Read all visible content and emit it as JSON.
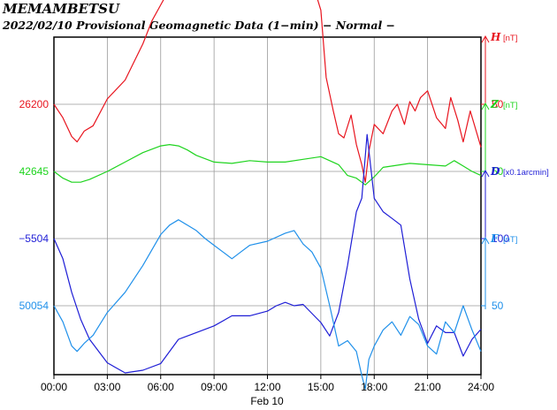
{
  "chart_data": {
    "type": "line",
    "title": "MEMAMBETSU",
    "subtitle": "2022/02/10  Provisional Geomagnetic Data (1−min)  − Normal −",
    "x_ticks": [
      "00:00",
      "03:00",
      "06:00",
      "09:00",
      "12:00",
      "15:00",
      "18:00",
      "21:00",
      "24:00"
    ],
    "x_range_hours": [
      0,
      24
    ],
    "date_label": "Feb 10",
    "grid": true,
    "series": [
      {
        "key": "H",
        "name": "H",
        "unit": "[nT]",
        "color": "#e8141e",
        "left_label": "26200",
        "right_tick": "50",
        "baseline": 26200,
        "scale_tick_value": 50,
        "x": [
          0,
          0.5,
          1,
          1.3,
          1.7,
          2.2,
          3,
          4,
          5,
          5.5,
          6,
          6.5,
          7,
          7.5,
          8,
          8.5,
          9,
          9.5,
          10,
          10.5,
          11,
          11.5,
          12,
          12.5,
          13,
          13.5,
          14,
          14.5,
          15,
          15.3,
          15.7,
          16,
          16.3,
          16.7,
          17,
          17.3,
          17.5,
          17.7,
          18,
          18.5,
          19,
          19.3,
          19.7,
          20,
          20.3,
          20.6,
          21,
          21.5,
          22,
          22.3,
          22.7,
          23,
          23.4,
          24
        ],
        "y": [
          0,
          -10,
          -24,
          -28,
          -20,
          -16,
          4,
          18,
          45,
          62,
          74,
          86,
          100,
          106,
          105,
          102,
          96,
          88,
          91,
          100,
          106,
          100,
          106,
          104,
          106,
          103,
          101,
          92,
          70,
          20,
          -5,
          -22,
          -25,
          -8,
          -30,
          -45,
          -58,
          -35,
          -15,
          -22,
          -5,
          0,
          -15,
          2,
          -5,
          5,
          10,
          -10,
          -18,
          5,
          -12,
          -28,
          -5,
          -32
        ]
      },
      {
        "key": "Z",
        "name": "Z",
        "unit": "[nT]",
        "color": "#1fd41f",
        "left_label": "42645",
        "right_tick": "50",
        "baseline": 42645,
        "scale_tick_value": 50,
        "x": [
          0,
          0.5,
          1,
          1.5,
          2,
          3,
          4,
          5,
          6,
          6.5,
          7,
          7.5,
          8,
          9,
          10,
          11,
          12,
          13,
          14,
          15,
          16,
          16.5,
          17,
          17.5,
          18,
          18.5,
          19,
          20,
          21,
          22,
          22.5,
          23,
          23.5,
          24
        ],
        "y": [
          0,
          -5,
          -8,
          -8,
          -6,
          0,
          7,
          14,
          19,
          20,
          19,
          16,
          12,
          7,
          6,
          8,
          7,
          7,
          9,
          11,
          5,
          -3,
          -5,
          -10,
          -4,
          3,
          4,
          6,
          5,
          4,
          8,
          4,
          0,
          -3
        ]
      },
      {
        "key": "D",
        "name": "D",
        "unit": "[x0.1arcmin]",
        "color": "#1f1ed6",
        "left_label": "−5504",
        "right_tick": "100",
        "baseline": -5504,
        "scale_tick_value": 100,
        "x": [
          0,
          0.5,
          1,
          1.5,
          2,
          3,
          4,
          5,
          6,
          7,
          8,
          9,
          10,
          11,
          12,
          12.5,
          13,
          13.5,
          14,
          15,
          15.5,
          16,
          16.5,
          17,
          17.3,
          17.6,
          18,
          18.5,
          19,
          19.5,
          20,
          20.5,
          21,
          21.5,
          22,
          22.5,
          23,
          23.5,
          24
        ],
        "y": [
          0,
          -30,
          -80,
          -120,
          -150,
          -185,
          -200,
          -196,
          -186,
          -150,
          -140,
          -130,
          -115,
          -115,
          -108,
          -100,
          -95,
          -100,
          -98,
          -125,
          -145,
          -110,
          -40,
          40,
          60,
          155,
          60,
          40,
          30,
          20,
          -60,
          -120,
          -156,
          -130,
          -140,
          -140,
          -175,
          -150,
          -135
        ]
      },
      {
        "key": "F",
        "name": "F",
        "unit": "[nT]",
        "color": "#1f90ea",
        "left_label": "50054",
        "right_tick": "50",
        "baseline": 50054,
        "scale_tick_value": 50,
        "x": [
          0,
          0.5,
          1,
          1.3,
          1.7,
          2.2,
          3,
          4,
          5,
          6,
          6.5,
          7,
          7.5,
          8,
          8.5,
          9,
          9.5,
          10,
          10.5,
          11,
          12,
          13,
          13.5,
          14,
          14.5,
          15,
          15.5,
          16,
          16.5,
          17,
          17.3,
          17.5,
          17.7,
          18,
          18.5,
          19,
          19.5,
          20,
          20.5,
          21,
          21.5,
          22,
          22.5,
          23,
          23.5,
          24
        ],
        "y": [
          0,
          -12,
          -30,
          -34,
          -28,
          -22,
          -5,
          10,
          30,
          53,
          60,
          64,
          60,
          56,
          50,
          45,
          40,
          35,
          40,
          45,
          48,
          54,
          56,
          46,
          40,
          28,
          0,
          -30,
          -26,
          -34,
          -52,
          -62,
          -40,
          -30,
          -18,
          -12,
          -22,
          -8,
          -14,
          -30,
          -36,
          -12,
          -20,
          0,
          -18,
          -34
        ]
      }
    ]
  }
}
